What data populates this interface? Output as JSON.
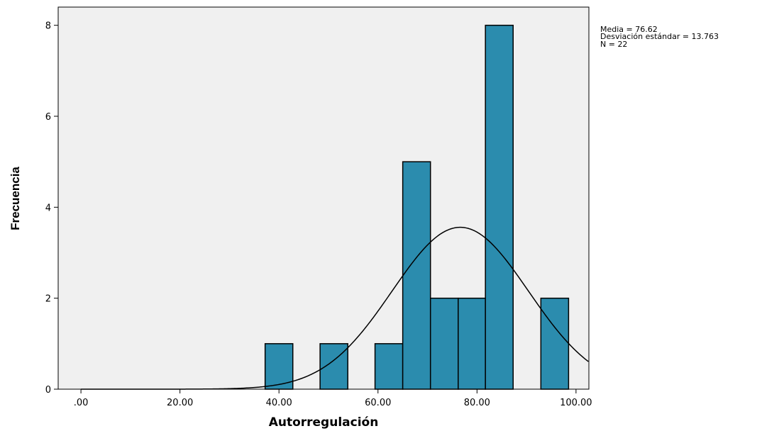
{
  "chart_data": {
    "type": "bar",
    "subtype": "histogram",
    "xlabel": "Autorregulación",
    "ylabel": "Frecuencia",
    "xlim": [
      -4.6,
      102.6
    ],
    "ylim": [
      0,
      8.4
    ],
    "x_ticks": [
      {
        "value": 0,
        "label": ".00"
      },
      {
        "value": 20,
        "label": "20.00"
      },
      {
        "value": 40,
        "label": "40.00"
      },
      {
        "value": 60,
        "label": "60.00"
      },
      {
        "value": 80,
        "label": "80.00"
      },
      {
        "value": 100,
        "label": "100.00"
      }
    ],
    "y_ticks": [
      {
        "value": 0,
        "label": "0"
      },
      {
        "value": 2,
        "label": "2"
      },
      {
        "value": 4,
        "label": "4"
      },
      {
        "value": 6,
        "label": "6"
      },
      {
        "value": 8,
        "label": "8"
      }
    ],
    "bins": [
      {
        "start": 37.2,
        "end": 42.8,
        "count": 1
      },
      {
        "start": 48.3,
        "end": 53.9,
        "count": 1
      },
      {
        "start": 59.4,
        "end": 65.0,
        "count": 1
      },
      {
        "start": 65.0,
        "end": 70.6,
        "count": 5
      },
      {
        "start": 70.6,
        "end": 76.2,
        "count": 2
      },
      {
        "start": 76.2,
        "end": 81.7,
        "count": 2
      },
      {
        "start": 81.7,
        "end": 87.3,
        "count": 8
      },
      {
        "start": 92.9,
        "end": 98.5,
        "count": 2
      }
    ],
    "normal_curve": {
      "mean": 76.62,
      "std_dev": 13.763,
      "n": 22,
      "bin_width": 5.58
    },
    "stats": [
      "Media = 76.62",
      "Desviación estándar = 13.763",
      "N = 22"
    ],
    "colors": {
      "bar_fill": "#2b8cae",
      "bar_stroke": "#000000",
      "plot_background": "#f0f0f0",
      "curve": "#000000"
    },
    "grid": false
  }
}
